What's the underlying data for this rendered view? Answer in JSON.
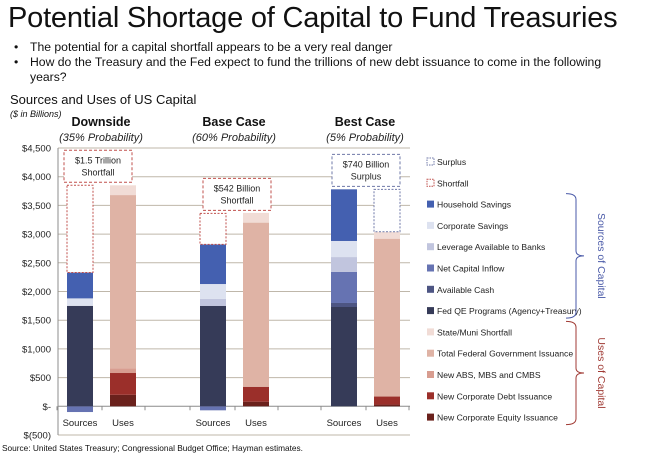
{
  "slide": {
    "title": "Potential Shortage of Capital to Fund Treasuries",
    "bullets": [
      "The potential for a capital shortfall appears to be a very real danger",
      "How do the Treasury and the Fed expect to fund the trillions of new debt issuance to come in the following years?"
    ],
    "chart_subtitle": "Sources and Uses of US Capital",
    "units_note": "($ in Billions)",
    "source_note": "Source:  United States Treasury; Congressional Budget Office; Hayman estimates."
  },
  "chart_data": {
    "type": "bar",
    "stacked": true,
    "title": "Sources and Uses of US Capital",
    "ylabel": "$ in Billions",
    "ylim": [
      -500,
      4500
    ],
    "yticks": [
      -500,
      0,
      500,
      1000,
      1500,
      2000,
      2500,
      3000,
      3500,
      4000,
      4500
    ],
    "ytick_labels": [
      "$(500)",
      "$-",
      "$500",
      "$1,000",
      "$1,500",
      "$2,000",
      "$2,500",
      "$3,000",
      "$3,500",
      "$4,000",
      "$4,500"
    ],
    "grid": true,
    "legend_position": "right",
    "scenarios": [
      {
        "name": "Downside",
        "probability": "(35% Probability)",
        "annotation": [
          "$1.5 Trillion",
          "Shortfall"
        ],
        "annotation_style": "shortfall",
        "bars": [
          {
            "category": "Sources",
            "segments": [
              {
                "series": "Net Capital Inflow",
                "value": -100
              },
              {
                "series": "Fed QE Programs (Agency+Treasury)",
                "value": 1750
              },
              {
                "series": "Corporate Savings",
                "value": 130
              },
              {
                "series": "Household Savings",
                "value": 450
              },
              {
                "series": "Shortfall",
                "value": 1520
              }
            ]
          },
          {
            "category": "Uses",
            "segments": [
              {
                "series": "New Corporate Equity Issuance",
                "value": 200
              },
              {
                "series": "New Corporate Debt Issuance",
                "value": 380
              },
              {
                "series": "New ABS, MBS and CMBS",
                "value": 80
              },
              {
                "series": "Total Federal Government Issuance",
                "value": 3020
              },
              {
                "series": "State/Muni Shortfall",
                "value": 170
              }
            ]
          }
        ]
      },
      {
        "name": "Base Case",
        "probability": "(60% Probability)",
        "annotation": [
          "$542 Billion",
          "Shortfall"
        ],
        "annotation_style": "shortfall",
        "bars": [
          {
            "category": "Sources",
            "segments": [
              {
                "series": "Net Capital Inflow",
                "value": -70
              },
              {
                "series": "Fed QE Programs (Agency+Treasury)",
                "value": 1750
              },
              {
                "series": "Leverage Available to Banks",
                "value": 120
              },
              {
                "series": "Corporate Savings",
                "value": 260
              },
              {
                "series": "Household Savings",
                "value": 690
              },
              {
                "series": "Shortfall",
                "value": 542
              }
            ]
          },
          {
            "category": "Uses",
            "segments": [
              {
                "series": "New Corporate Equity Issuance",
                "value": 80
              },
              {
                "series": "New Corporate Debt Issuance",
                "value": 260
              },
              {
                "series": "Total Federal Government Issuance",
                "value": 2860
              },
              {
                "series": "State/Muni Shortfall",
                "value": 170
              }
            ]
          }
        ]
      },
      {
        "name": "Best Case",
        "probability": "(5% Probability)",
        "annotation": [
          "$740 Billion",
          "Surplus"
        ],
        "annotation_style": "surplus",
        "bars": [
          {
            "category": "Sources",
            "segments": [
              {
                "series": "Fed QE Programs (Agency+Treasury)",
                "value": 1730
              },
              {
                "series": "Available Cash",
                "value": 70
              },
              {
                "series": "Net Capital Inflow",
                "value": 540
              },
              {
                "series": "Leverage Available to Banks",
                "value": 260
              },
              {
                "series": "Corporate Savings",
                "value": 280
              },
              {
                "series": "Household Savings",
                "value": 900
              }
            ]
          },
          {
            "category": "Uses",
            "segments": [
              {
                "series": "New Corporate Equity Issuance",
                "value": 30
              },
              {
                "series": "New Corporate Debt Issuance",
                "value": 140
              },
              {
                "series": "Total Federal Government Issuance",
                "value": 2750
              },
              {
                "series": "State/Muni Shortfall",
                "value": 120
              },
              {
                "series": "Surplus",
                "value": 740
              }
            ]
          }
        ]
      }
    ],
    "legend": [
      {
        "name": "Surplus",
        "color": "#ffffff",
        "outline": "#6f78a8",
        "dashed": true
      },
      {
        "name": "Shortfall",
        "color": "#ffffff",
        "outline": "#c0504d",
        "dashed": true
      },
      {
        "name": "Household Savings",
        "color": "#4460b0"
      },
      {
        "name": "Corporate Savings",
        "color": "#dde2f0"
      },
      {
        "name": "Leverage Available to Banks",
        "color": "#c1c5de"
      },
      {
        "name": "Net Capital Inflow",
        "color": "#6673b2"
      },
      {
        "name": "Available Cash",
        "color": "#4d5583"
      },
      {
        "name": "Fed QE Programs (Agency+Treasury)",
        "color": "#363b58"
      },
      {
        "name": "State/Muni Shortfall",
        "color": "#f1dcd6"
      },
      {
        "name": "Total Federal Government Issuance",
        "color": "#dfb3a5"
      },
      {
        "name": "New ABS, MBS and CMBS",
        "color": "#d89d90"
      },
      {
        "name": "New Corporate Debt Issuance",
        "color": "#9b2f2a"
      },
      {
        "name": "New Corporate Equity Issuance",
        "color": "#6a211c"
      }
    ],
    "groups": [
      {
        "label": "Sources of Capital",
        "color": "#4a5aa8",
        "from": "Household Savings",
        "to": "Fed QE Programs (Agency+Treasury)"
      },
      {
        "label": "Uses of Capital",
        "color": "#a03a34",
        "from": "State/Muni Shortfall",
        "to": "New Corporate Equity Issuance"
      }
    ]
  }
}
